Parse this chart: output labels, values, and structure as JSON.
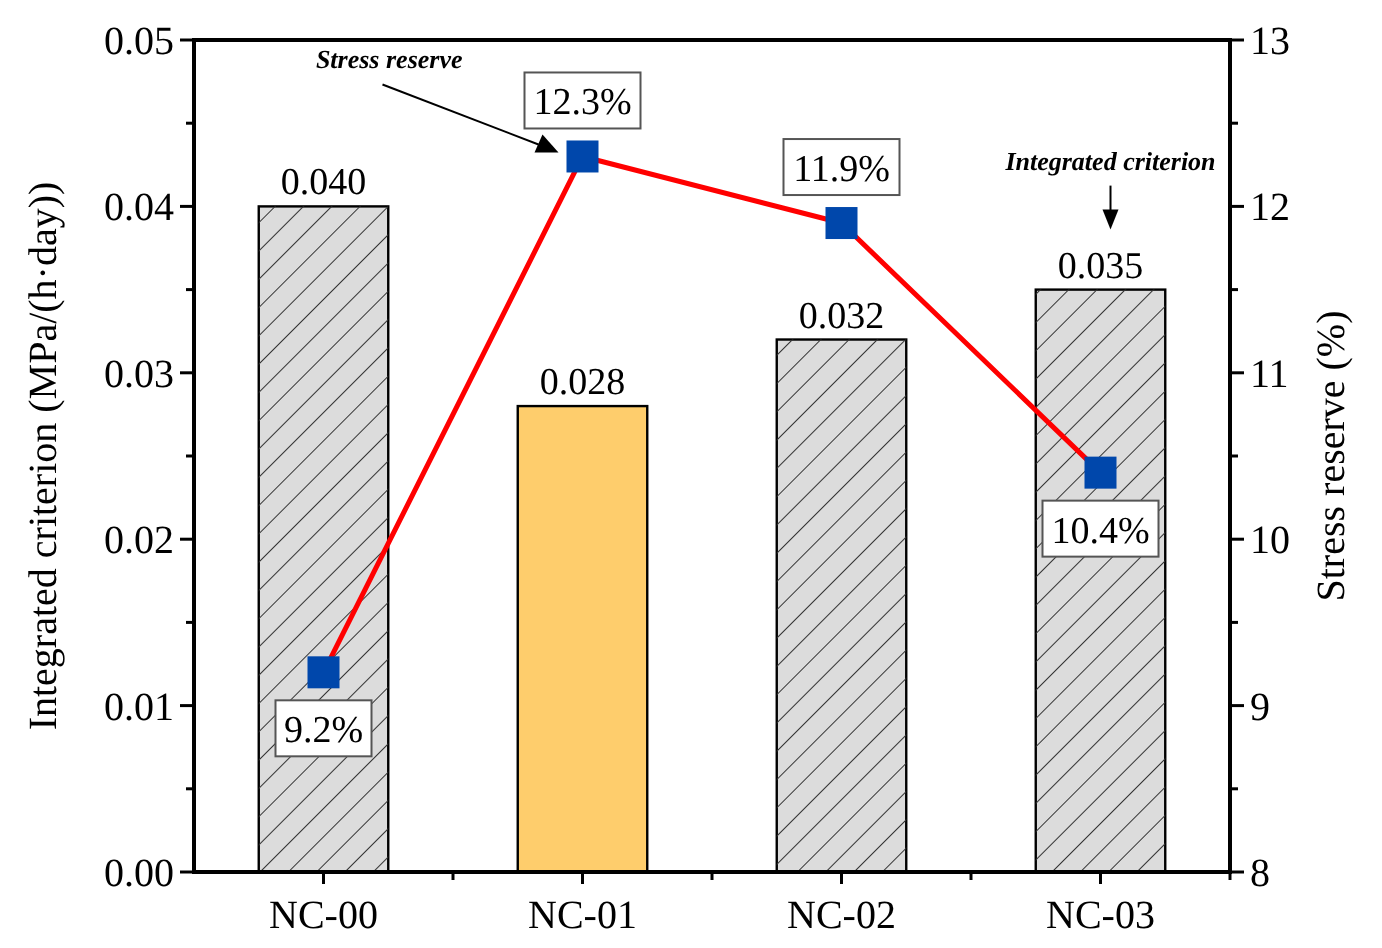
{
  "chart_data": {
    "type": "bar",
    "categories": [
      "NC-00",
      "NC-01",
      "NC-02",
      "NC-03"
    ],
    "ylabel": "Integrated criterion (MPa/(h·day))",
    "y2label": "Stress reserve (%)",
    "series": [
      {
        "values": [
          0.04,
          0.028,
          0.032,
          0.035
        ],
        "colors": [
          "#dcdcdc",
          "#fecd6c",
          "#dcdcdc",
          "#dcdcdc"
        ],
        "value_labels": [
          "0.040",
          "0.028",
          "0.032",
          "0.035"
        ]
      },
      {
        "type": "line",
        "axis": "y2",
        "color": "#ff0000",
        "values": [
          9.2,
          12.3,
          11.9,
          10.4
        ],
        "value_labels": [
          "9.2%",
          "12.3%",
          "11.9%",
          "10.4%"
        ],
        "marker": "square",
        "line_style": "solid"
      }
    ],
    "ylim": [
      0,
      0.05
    ],
    "yticks": [
      {
        "value": 0,
        "label": "0.00"
      },
      {
        "value": 0.005,
        "label": null
      },
      0.01,
      {
        "value": 0.015,
        "label": null
      },
      0.02,
      {
        "value": 0.025,
        "label": null
      },
      0.03,
      {
        "value": 0.035,
        "label": null
      },
      0.04,
      {
        "value": 0.045,
        "label": null
      },
      0.05
    ],
    "y2lim": [
      8,
      13
    ],
    "y2ticks": [
      8,
      {
        "value": 8.5,
        "label": null
      },
      9,
      {
        "value": 9.5,
        "label": null
      },
      10,
      {
        "value": 10.5,
        "label": null
      },
      11,
      {
        "value": 11.5,
        "label": null
      },
      12,
      {
        "value": 12.5,
        "label": null
      },
      13
    ],
    "annotations": [
      "Stress reserve",
      "Integrated criterion"
    ],
    "grid": false
  }
}
